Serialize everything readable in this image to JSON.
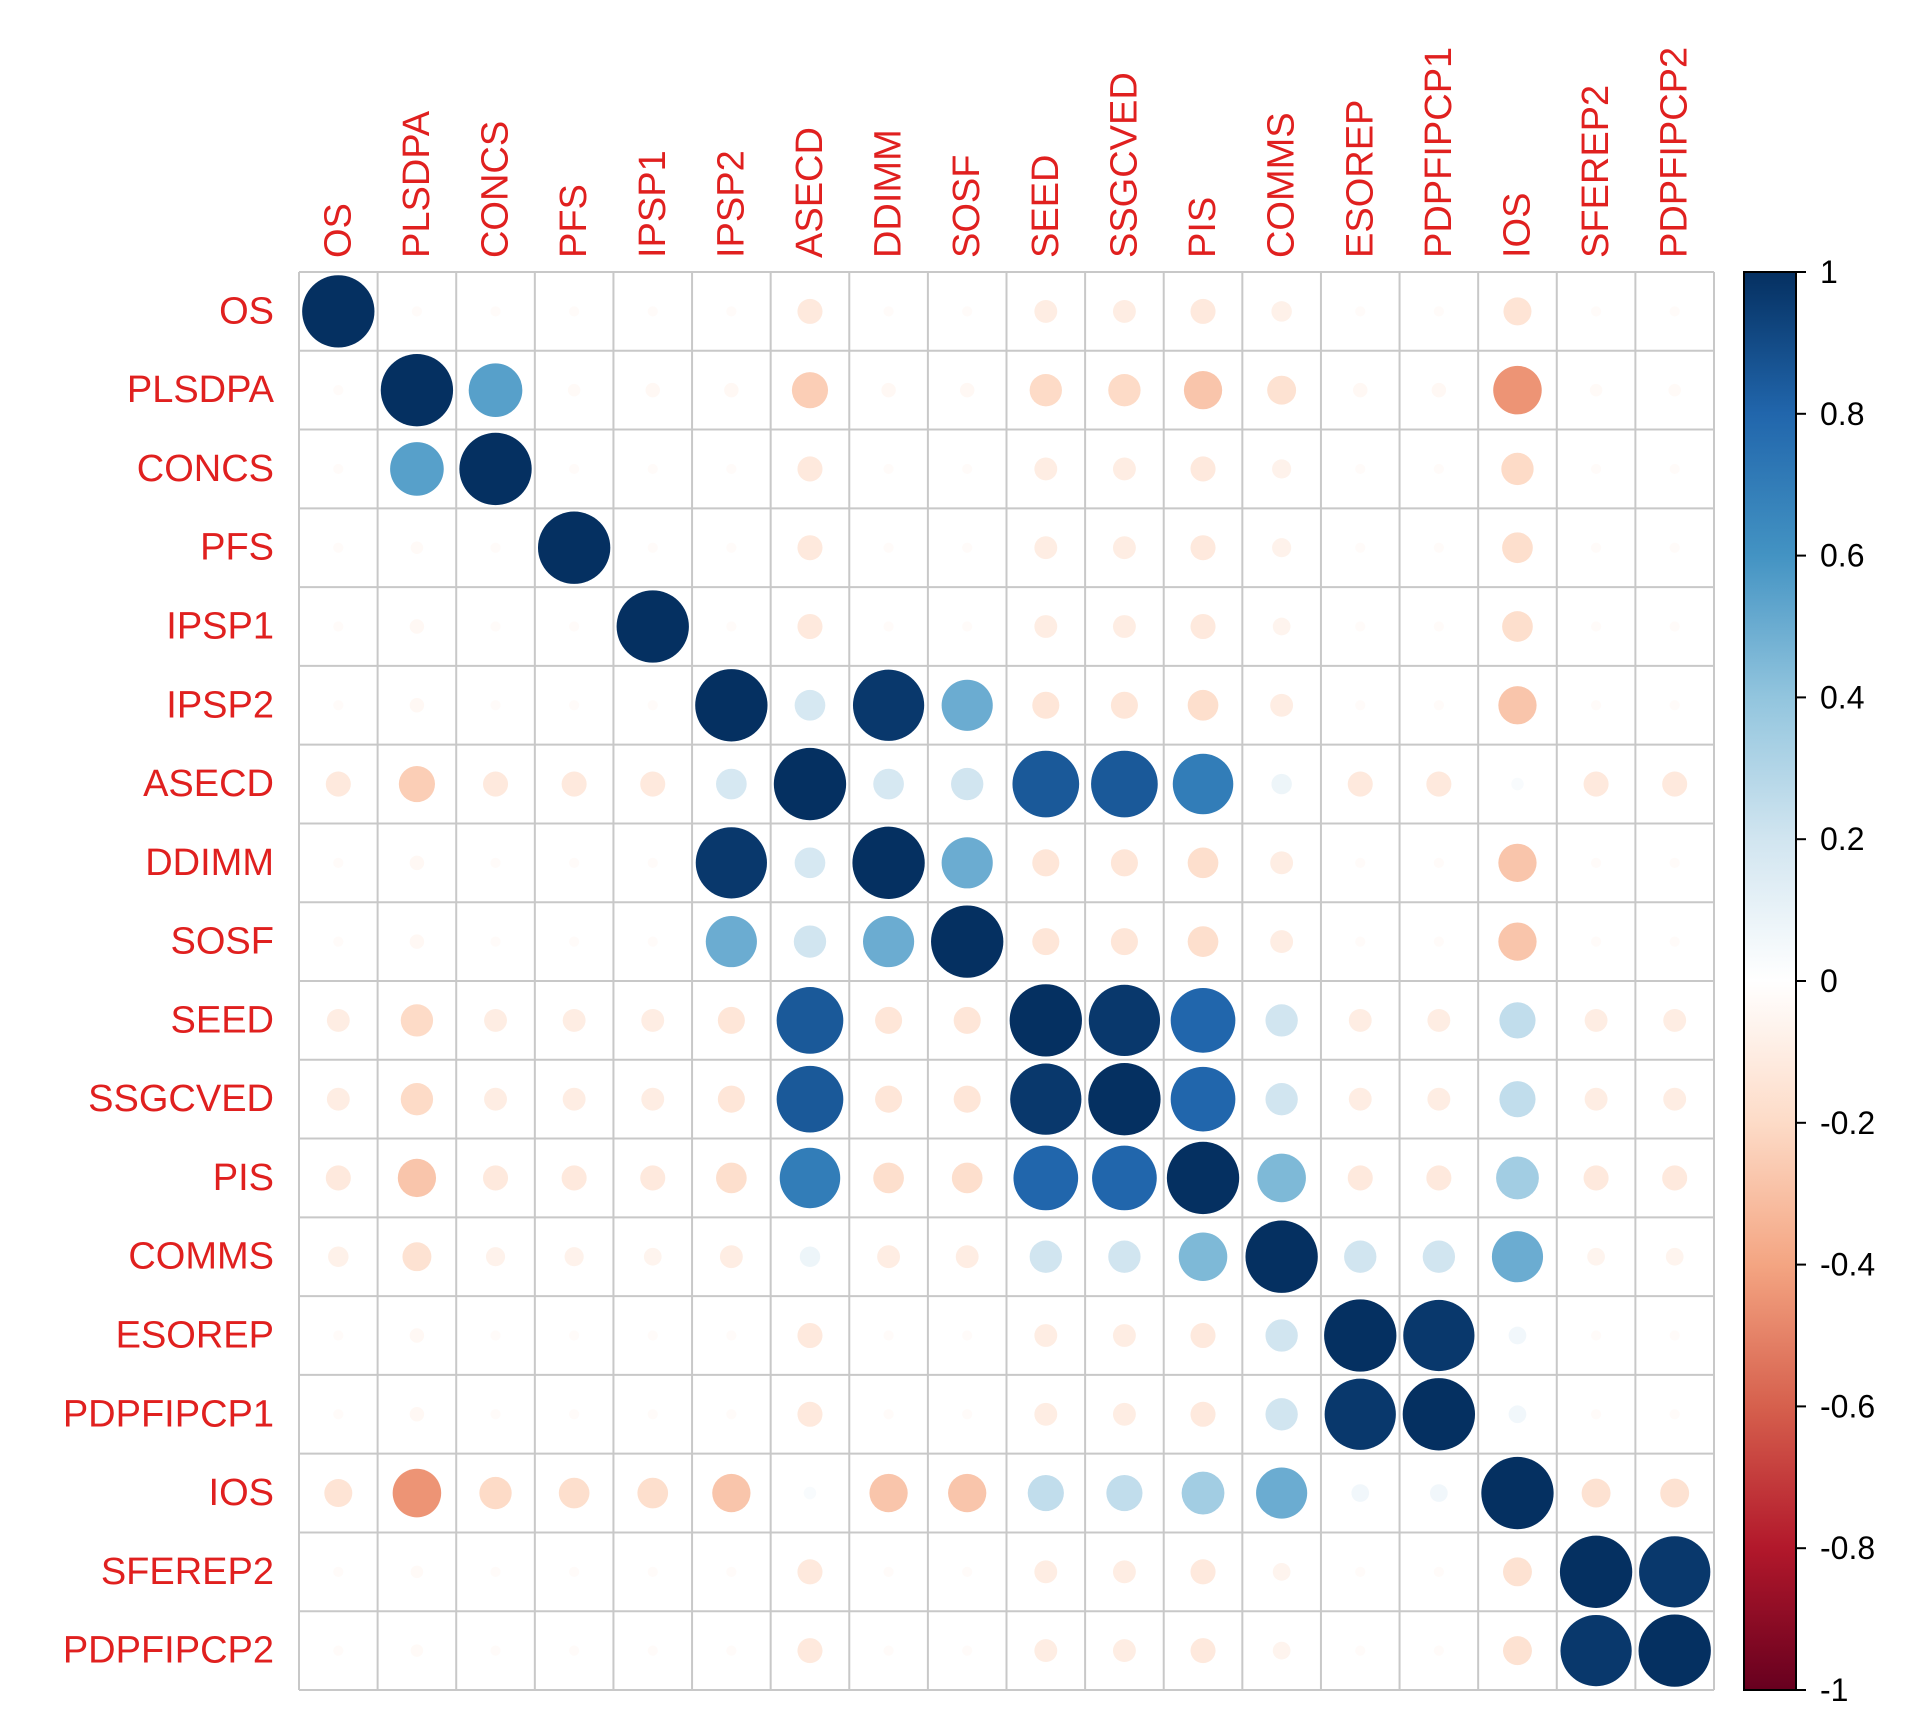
{
  "chart_data": {
    "type": "heatmap",
    "style": "correlation-circle-matrix",
    "title": "",
    "variables": [
      "OS",
      "PLSDPA",
      "CONCS",
      "PFS",
      "IPSP1",
      "IPSP2",
      "ASECD",
      "DDIMM",
      "SOSF",
      "SEED",
      "SSGCVED",
      "PIS",
      "COMMS",
      "ESOREP",
      "PDPFIPCP1",
      "IOS",
      "SFEREP2",
      "PDPFIPCP2"
    ],
    "matrix": [
      [
        1.0,
        -0.02,
        -0.02,
        -0.02,
        -0.02,
        -0.02,
        -0.12,
        -0.02,
        -0.02,
        -0.1,
        -0.1,
        -0.12,
        -0.08,
        -0.02,
        -0.02,
        -0.15,
        -0.02,
        -0.02
      ],
      [
        -0.02,
        1.0,
        0.55,
        -0.03,
        -0.04,
        -0.04,
        -0.25,
        -0.04,
        -0.04,
        -0.2,
        -0.2,
        -0.28,
        -0.16,
        -0.04,
        -0.04,
        -0.45,
        -0.03,
        -0.03
      ],
      [
        -0.02,
        0.55,
        1.0,
        -0.02,
        -0.02,
        -0.02,
        -0.12,
        -0.02,
        -0.02,
        -0.1,
        -0.1,
        -0.12,
        -0.07,
        -0.02,
        -0.02,
        -0.2,
        -0.02,
        -0.02
      ],
      [
        -0.02,
        -0.03,
        -0.02,
        1.0,
        -0.02,
        -0.02,
        -0.12,
        -0.02,
        -0.02,
        -0.1,
        -0.1,
        -0.12,
        -0.07,
        -0.02,
        -0.02,
        -0.18,
        -0.02,
        -0.02
      ],
      [
        -0.02,
        -0.04,
        -0.02,
        -0.02,
        1.0,
        -0.02,
        -0.12,
        -0.02,
        -0.02,
        -0.1,
        -0.1,
        -0.12,
        -0.06,
        -0.02,
        -0.02,
        -0.18,
        -0.02,
        -0.02
      ],
      [
        -0.02,
        -0.04,
        -0.02,
        -0.02,
        -0.02,
        1.0,
        0.18,
        0.97,
        0.5,
        -0.14,
        -0.14,
        -0.18,
        -0.1,
        -0.02,
        -0.02,
        -0.28,
        -0.02,
        -0.02
      ],
      [
        -0.12,
        -0.25,
        -0.12,
        -0.12,
        -0.12,
        0.18,
        1.0,
        0.18,
        0.2,
        0.85,
        0.85,
        0.7,
        0.08,
        -0.12,
        -0.12,
        0.03,
        -0.12,
        -0.12
      ],
      [
        -0.02,
        -0.04,
        -0.02,
        -0.02,
        -0.02,
        0.97,
        0.18,
        1.0,
        0.5,
        -0.14,
        -0.14,
        -0.18,
        -0.1,
        -0.02,
        -0.02,
        -0.28,
        -0.02,
        -0.02
      ],
      [
        -0.02,
        -0.04,
        -0.02,
        -0.02,
        -0.02,
        0.5,
        0.2,
        0.5,
        1.0,
        -0.14,
        -0.14,
        -0.18,
        -0.1,
        -0.02,
        -0.02,
        -0.28,
        -0.02,
        -0.02
      ],
      [
        -0.1,
        -0.2,
        -0.1,
        -0.1,
        -0.1,
        -0.14,
        0.85,
        -0.14,
        -0.14,
        1.0,
        0.97,
        0.8,
        0.2,
        -0.1,
        -0.1,
        0.25,
        -0.1,
        -0.1
      ],
      [
        -0.1,
        -0.2,
        -0.1,
        -0.1,
        -0.1,
        -0.14,
        0.85,
        -0.14,
        -0.14,
        0.97,
        1.0,
        0.8,
        0.2,
        -0.1,
        -0.1,
        0.25,
        -0.1,
        -0.1
      ],
      [
        -0.12,
        -0.28,
        -0.12,
        -0.12,
        -0.12,
        -0.18,
        0.7,
        -0.18,
        -0.18,
        0.8,
        0.8,
        1.0,
        0.45,
        -0.12,
        -0.12,
        0.35,
        -0.12,
        -0.12
      ],
      [
        -0.08,
        -0.16,
        -0.07,
        -0.07,
        -0.06,
        -0.1,
        0.08,
        -0.1,
        -0.1,
        0.2,
        0.2,
        0.45,
        1.0,
        0.2,
        0.2,
        0.5,
        -0.06,
        -0.06
      ],
      [
        -0.02,
        -0.04,
        -0.02,
        -0.02,
        -0.02,
        -0.02,
        -0.12,
        -0.02,
        -0.02,
        -0.1,
        -0.1,
        -0.12,
        0.2,
        1.0,
        0.97,
        0.06,
        -0.02,
        -0.02
      ],
      [
        -0.02,
        -0.04,
        -0.02,
        -0.02,
        -0.02,
        -0.02,
        -0.12,
        -0.02,
        -0.02,
        -0.1,
        -0.1,
        -0.12,
        0.2,
        0.97,
        1.0,
        0.06,
        -0.02,
        -0.02
      ],
      [
        -0.15,
        -0.45,
        -0.2,
        -0.18,
        -0.18,
        -0.28,
        0.03,
        -0.28,
        -0.28,
        0.25,
        0.25,
        0.35,
        0.5,
        0.06,
        0.06,
        1.0,
        -0.16,
        -0.16
      ],
      [
        -0.02,
        -0.03,
        -0.02,
        -0.02,
        -0.02,
        -0.02,
        -0.12,
        -0.02,
        -0.02,
        -0.1,
        -0.1,
        -0.12,
        -0.06,
        -0.02,
        -0.02,
        -0.16,
        1.0,
        0.97
      ],
      [
        -0.02,
        -0.03,
        -0.02,
        -0.02,
        -0.02,
        -0.02,
        -0.12,
        -0.02,
        -0.02,
        -0.1,
        -0.1,
        -0.12,
        -0.06,
        -0.02,
        -0.02,
        -0.16,
        0.97,
        1.0
      ]
    ],
    "colorbar": {
      "range": [
        -1,
        1
      ],
      "ticks": [
        "1",
        "0.8",
        "0.6",
        "0.4",
        "0.2",
        "0",
        "-0.2",
        "-0.4",
        "-0.6",
        "-0.8",
        "-1"
      ],
      "tick_values": [
        1,
        0.8,
        0.6,
        0.4,
        0.2,
        0,
        -0.2,
        -0.4,
        -0.6,
        -0.8,
        -1
      ],
      "palette": [
        "#67001F",
        "#B2182B",
        "#D6604D",
        "#F4A582",
        "#FDDBC7",
        "#FFFFFF",
        "#D1E5F0",
        "#92C5DE",
        "#4393C3",
        "#2166AC",
        "#053061"
      ]
    },
    "label_color": "#E0201F",
    "grid_color": "#C8C8C8",
    "legend_position": "right"
  }
}
